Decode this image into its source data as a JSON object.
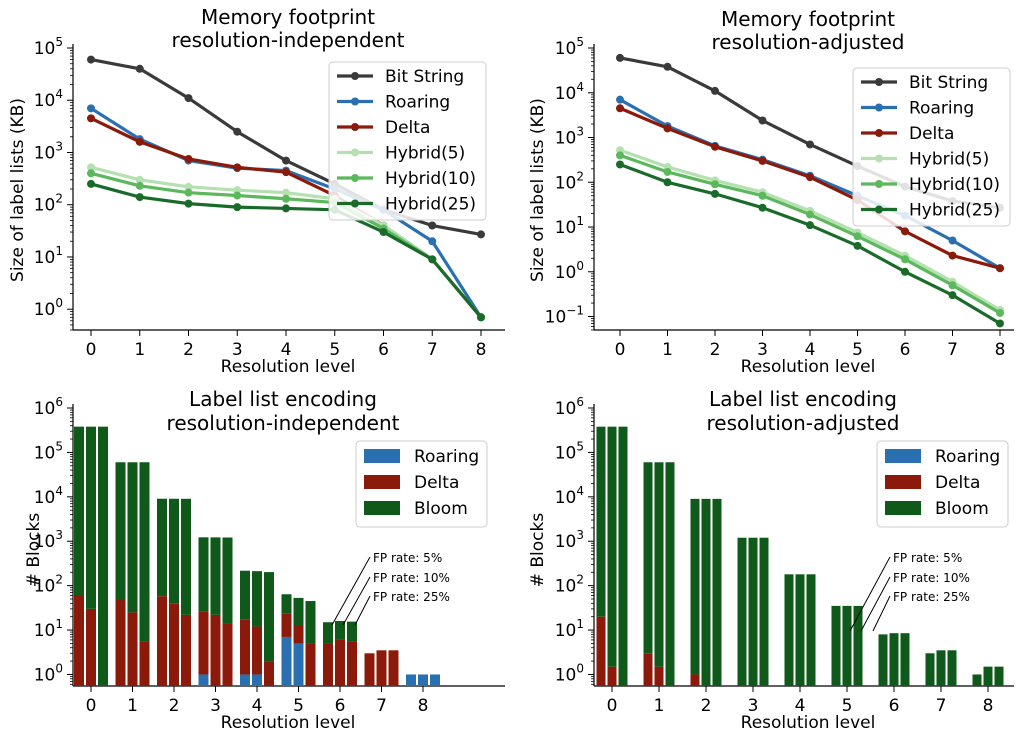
{
  "chart_data": [
    {
      "type": "line",
      "title": "Memory footprint",
      "subtitle": "resolution-independent",
      "xlabel": "Resolution level",
      "ylabel": "Size of label lists (KB)",
      "yscale": "log",
      "ylim": [
        0.4,
        100000
      ],
      "y_ticks": [
        {
          "value": 1,
          "base": "10",
          "exp": "0"
        },
        {
          "value": 10,
          "base": "10",
          "exp": "1"
        },
        {
          "value": 100,
          "base": "10",
          "exp": "2"
        },
        {
          "value": 1000,
          "base": "10",
          "exp": "3"
        },
        {
          "value": 10000,
          "base": "10",
          "exp": "4"
        },
        {
          "value": 100000,
          "base": "10",
          "exp": "5"
        }
      ],
      "x": [
        0,
        1,
        2,
        3,
        4,
        5,
        6,
        7,
        8
      ],
      "x_tick_labels": [
        "0",
        "1",
        "2",
        "3",
        "4",
        "5",
        "6",
        "7",
        "8"
      ],
      "legend": "top-right",
      "series": [
        {
          "name": "Bit String",
          "color": "#3a3a3a",
          "values": [
            60000,
            40000,
            11000,
            2500,
            700,
            250,
            80,
            40,
            27
          ]
        },
        {
          "name": "Roaring",
          "color": "#2a6fb0",
          "values": [
            7000,
            1800,
            700,
            500,
            450,
            200,
            80,
            20,
            0.7
          ]
        },
        {
          "name": "Delta",
          "color": "#8b1a0a",
          "values": [
            4500,
            1600,
            750,
            520,
            420,
            150,
            40,
            9,
            0.7
          ]
        },
        {
          "name": "Hybrid(5)",
          "color": "#b5e0b0",
          "values": [
            520,
            300,
            220,
            190,
            170,
            130,
            40,
            9,
            0.7
          ]
        },
        {
          "name": "Hybrid(10)",
          "color": "#5cb85c",
          "values": [
            400,
            230,
            170,
            150,
            130,
            110,
            35,
            9,
            0.7
          ]
        },
        {
          "name": "Hybrid(25)",
          "color": "#1a6b2a",
          "values": [
            250,
            140,
            105,
            90,
            85,
            80,
            30,
            9,
            0.7
          ]
        }
      ]
    },
    {
      "type": "line",
      "title": "Memory footprint",
      "subtitle": "resolution-adjusted",
      "xlabel": "Resolution level",
      "ylabel": "Size of label lists (KB)",
      "yscale": "log",
      "ylim": [
        0.05,
        100000
      ],
      "y_ticks": [
        {
          "value": 0.1,
          "base": "10",
          "exp": "−1"
        },
        {
          "value": 1,
          "base": "10",
          "exp": "0"
        },
        {
          "value": 10,
          "base": "10",
          "exp": "1"
        },
        {
          "value": 100,
          "base": "10",
          "exp": "2"
        },
        {
          "value": 1000,
          "base": "10",
          "exp": "3"
        },
        {
          "value": 10000,
          "base": "10",
          "exp": "4"
        },
        {
          "value": 100000,
          "base": "10",
          "exp": "5"
        }
      ],
      "x": [
        0,
        1,
        2,
        3,
        4,
        5,
        6,
        7,
        8
      ],
      "x_tick_labels": [
        "0",
        "1",
        "2",
        "3",
        "4",
        "5",
        "6",
        "7",
        "8"
      ],
      "legend": "top-right",
      "series": [
        {
          "name": "Bit String",
          "color": "#3a3a3a",
          "values": [
            60000,
            38000,
            11000,
            2400,
            700,
            230,
            80,
            38,
            27
          ]
        },
        {
          "name": "Roaring",
          "color": "#2a6fb0",
          "values": [
            7000,
            1800,
            650,
            320,
            140,
            50,
            18,
            5,
            1.2
          ]
        },
        {
          "name": "Delta",
          "color": "#8b1a0a",
          "values": [
            4500,
            1600,
            620,
            300,
            130,
            40,
            8,
            2.3,
            1.2
          ]
        },
        {
          "name": "Hybrid(5)",
          "color": "#b5e0b0",
          "values": [
            520,
            220,
            110,
            60,
            23,
            7.5,
            2.3,
            0.6,
            0.14
          ]
        },
        {
          "name": "Hybrid(10)",
          "color": "#5cb85c",
          "values": [
            400,
            170,
            90,
            50,
            19,
            6.2,
            1.9,
            0.5,
            0.12
          ]
        },
        {
          "name": "Hybrid(25)",
          "color": "#1a6b2a",
          "values": [
            250,
            100,
            55,
            27,
            11,
            3.8,
            1.0,
            0.3,
            0.07
          ]
        }
      ]
    },
    {
      "type": "bar",
      "stacked": true,
      "title": "Label list encoding",
      "subtitle": "resolution-independent",
      "xlabel": "Resolution level",
      "ylabel": "# Blocks",
      "yscale": "log",
      "ylim": [
        0.55,
        1000000
      ],
      "y_ticks": [
        {
          "value": 1,
          "base": "10",
          "exp": "0"
        },
        {
          "value": 10,
          "base": "10",
          "exp": "1"
        },
        {
          "value": 100,
          "base": "10",
          "exp": "2"
        },
        {
          "value": 1000,
          "base": "10",
          "exp": "3"
        },
        {
          "value": 10000,
          "base": "10",
          "exp": "4"
        },
        {
          "value": 100000,
          "base": "10",
          "exp": "5"
        },
        {
          "value": 1000000,
          "base": "10",
          "exp": "6"
        }
      ],
      "x_tick_labels": [
        "0",
        "1",
        "2",
        "3",
        "4",
        "5",
        "6",
        "7",
        "8"
      ],
      "legend": "top-right",
      "categories": [
        "Roaring",
        "Delta",
        "Bloom"
      ],
      "colors": {
        "Roaring": "#2a6fb0",
        "Delta": "#8b1a0a",
        "Bloom": "#0f5a1a"
      },
      "groups": [
        {
          "level": 0,
          "bars": [
            {
              "roaring": 0,
              "delta": 60,
              "bloom": 380000
            },
            {
              "roaring": 0,
              "delta": 30,
              "bloom": 380000
            },
            {
              "roaring": 0,
              "delta": 0,
              "bloom": 380000
            }
          ]
        },
        {
          "level": 1,
          "bars": [
            {
              "roaring": 0,
              "delta": 50,
              "bloom": 60000
            },
            {
              "roaring": 0,
              "delta": 25,
              "bloom": 60000
            },
            {
              "roaring": 0,
              "delta": 5.5,
              "bloom": 60000
            }
          ]
        },
        {
          "level": 2,
          "bars": [
            {
              "roaring": 0,
              "delta": 58,
              "bloom": 9000
            },
            {
              "roaring": 0,
              "delta": 40,
              "bloom": 9000
            },
            {
              "roaring": 0,
              "delta": 22,
              "bloom": 9000
            }
          ]
        },
        {
          "level": 3,
          "bars": [
            {
              "roaring": 1,
              "delta": 25,
              "bloom": 1200
            },
            {
              "roaring": 0,
              "delta": 22,
              "bloom": 1200
            },
            {
              "roaring": 0,
              "delta": 14,
              "bloom": 1200
            }
          ]
        },
        {
          "level": 4,
          "bars": [
            {
              "roaring": 1,
              "delta": 16,
              "bloom": 200
            },
            {
              "roaring": 1,
              "delta": 11,
              "bloom": 200
            },
            {
              "roaring": 0,
              "delta": 2,
              "bloom": 200
            }
          ]
        },
        {
          "level": 5,
          "bars": [
            {
              "roaring": 7,
              "delta": 17,
              "bloom": 40
            },
            {
              "roaring": 5,
              "delta": 8,
              "bloom": 40
            },
            {
              "roaring": 0,
              "delta": 5,
              "bloom": 40
            }
          ]
        },
        {
          "level": 6,
          "bars": [
            {
              "roaring": 0,
              "delta": 5,
              "bloom": 10
            },
            {
              "roaring": 0,
              "delta": 6,
              "bloom": 10
            },
            {
              "roaring": 0,
              "delta": 5.5,
              "bloom": 10
            }
          ]
        },
        {
          "level": 7,
          "bars": [
            {
              "roaring": 0,
              "delta": 3,
              "bloom": 0
            },
            {
              "roaring": 0,
              "delta": 3.5,
              "bloom": 0
            },
            {
              "roaring": 0,
              "delta": 3.5,
              "bloom": 0
            }
          ]
        },
        {
          "level": 8,
          "bars": [
            {
              "roaring": 1,
              "delta": 0,
              "bloom": 0
            },
            {
              "roaring": 1,
              "delta": 0,
              "bloom": 0
            },
            {
              "roaring": 1,
              "delta": 0,
              "bloom": 0
            }
          ]
        }
      ],
      "annotations": [
        "FP rate: 5%",
        "FP rate: 10%",
        "FP rate: 25%"
      ]
    },
    {
      "type": "bar",
      "stacked": true,
      "title": "Label list encoding",
      "subtitle": "resolution-adjusted",
      "xlabel": "Resolution level",
      "ylabel": "# Blocks",
      "yscale": "log",
      "ylim": [
        0.55,
        1000000
      ],
      "y_ticks": [
        {
          "value": 1,
          "base": "10",
          "exp": "0"
        },
        {
          "value": 10,
          "base": "10",
          "exp": "1"
        },
        {
          "value": 100,
          "base": "10",
          "exp": "2"
        },
        {
          "value": 1000,
          "base": "10",
          "exp": "3"
        },
        {
          "value": 10000,
          "base": "10",
          "exp": "4"
        },
        {
          "value": 100000,
          "base": "10",
          "exp": "5"
        },
        {
          "value": 1000000,
          "base": "10",
          "exp": "6"
        }
      ],
      "x_tick_labels": [
        "0",
        "1",
        "2",
        "3",
        "4",
        "5",
        "6",
        "7",
        "8"
      ],
      "legend": "top-right",
      "categories": [
        "Roaring",
        "Delta",
        "Bloom"
      ],
      "colors": {
        "Roaring": "#2a6fb0",
        "Delta": "#8b1a0a",
        "Bloom": "#0f5a1a"
      },
      "groups": [
        {
          "level": 0,
          "bars": [
            {
              "roaring": 0,
              "delta": 20,
              "bloom": 380000
            },
            {
              "roaring": 0,
              "delta": 1.5,
              "bloom": 380000
            },
            {
              "roaring": 0,
              "delta": 0,
              "bloom": 380000
            }
          ]
        },
        {
          "level": 1,
          "bars": [
            {
              "roaring": 0,
              "delta": 3,
              "bloom": 60000
            },
            {
              "roaring": 0,
              "delta": 1.5,
              "bloom": 60000
            },
            {
              "roaring": 0,
              "delta": 0,
              "bloom": 60000
            }
          ]
        },
        {
          "level": 2,
          "bars": [
            {
              "roaring": 0,
              "delta": 1,
              "bloom": 9000
            },
            {
              "roaring": 0,
              "delta": 0,
              "bloom": 9000
            },
            {
              "roaring": 0,
              "delta": 0,
              "bloom": 9000
            }
          ]
        },
        {
          "level": 3,
          "bars": [
            {
              "roaring": 0,
              "delta": 0,
              "bloom": 1200
            },
            {
              "roaring": 0,
              "delta": 0,
              "bloom": 1200
            },
            {
              "roaring": 0,
              "delta": 0,
              "bloom": 1200
            }
          ]
        },
        {
          "level": 4,
          "bars": [
            {
              "roaring": 0,
              "delta": 0,
              "bloom": 180
            },
            {
              "roaring": 0,
              "delta": 0,
              "bloom": 180
            },
            {
              "roaring": 0,
              "delta": 0,
              "bloom": 180
            }
          ]
        },
        {
          "level": 5,
          "bars": [
            {
              "roaring": 0,
              "delta": 0,
              "bloom": 35
            },
            {
              "roaring": 0,
              "delta": 0,
              "bloom": 35
            },
            {
              "roaring": 0,
              "delta": 0,
              "bloom": 35
            }
          ]
        },
        {
          "level": 6,
          "bars": [
            {
              "roaring": 0,
              "delta": 0,
              "bloom": 8
            },
            {
              "roaring": 0,
              "delta": 0,
              "bloom": 8.5
            },
            {
              "roaring": 0,
              "delta": 0,
              "bloom": 8.5
            }
          ]
        },
        {
          "level": 7,
          "bars": [
            {
              "roaring": 0,
              "delta": 0,
              "bloom": 3
            },
            {
              "roaring": 0,
              "delta": 0,
              "bloom": 3.5
            },
            {
              "roaring": 0,
              "delta": 0,
              "bloom": 3.5
            }
          ]
        },
        {
          "level": 8,
          "bars": [
            {
              "roaring": 0,
              "delta": 0,
              "bloom": 1
            },
            {
              "roaring": 0,
              "delta": 0,
              "bloom": 1.5
            },
            {
              "roaring": 0,
              "delta": 0,
              "bloom": 1.5
            }
          ]
        }
      ],
      "annotations": [
        "FP rate: 5%",
        "FP rate: 10%",
        "FP rate: 25%"
      ]
    }
  ]
}
